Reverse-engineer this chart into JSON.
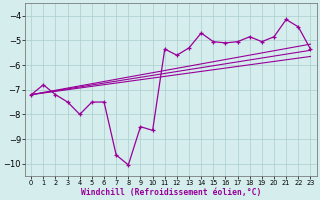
{
  "x": [
    0,
    1,
    2,
    3,
    4,
    5,
    6,
    7,
    8,
    9,
    10,
    11,
    12,
    13,
    14,
    15,
    16,
    17,
    18,
    19,
    20,
    21,
    22,
    23
  ],
  "y_main": [
    -7.2,
    -6.8,
    -7.2,
    -7.5,
    -8.0,
    -7.5,
    -7.5,
    -9.65,
    -10.05,
    -8.5,
    -8.65,
    -5.35,
    -5.6,
    -5.3,
    -4.7,
    -5.05,
    -5.1,
    -5.05,
    -4.85,
    -5.05,
    -4.85,
    -4.15,
    -4.45,
    -5.35
  ],
  "line1_x": [
    0,
    23
  ],
  "line1_y": [
    -7.2,
    -5.15
  ],
  "line2_x": [
    0,
    23
  ],
  "line2_y": [
    -7.2,
    -5.4
  ],
  "line3_x": [
    0,
    23
  ],
  "line3_y": [
    -7.2,
    -5.65
  ],
  "color": "#990099",
  "bg_color": "#d5eded",
  "grid_color": "#aacccc",
  "xlim": [
    -0.5,
    23.5
  ],
  "ylim": [
    -10.5,
    -3.5
  ],
  "yticks": [
    -10,
    -9,
    -8,
    -7,
    -6,
    -5,
    -4
  ],
  "xlabel": "Windchill (Refroidissement éolien,°C)"
}
